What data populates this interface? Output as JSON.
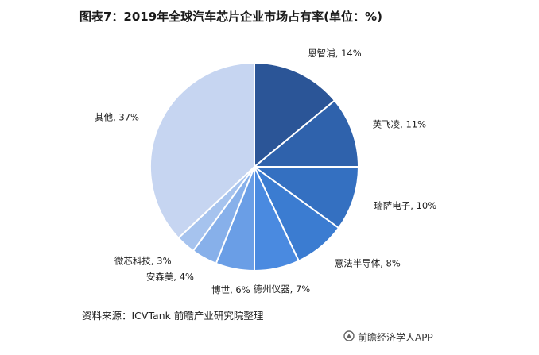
{
  "title": "图表7：2019年全球汽车芯片企业市场占有率(单位：%)",
  "source_text": "资料来源：ICVTank 前瞻产业研究院整理",
  "credit_text": "前瞻经济学人APP",
  "colors": {
    "slices": [
      "#2b5597",
      "#2f62ac",
      "#3470c1",
      "#3b7cd1",
      "#4a8ae0",
      "#6a9ee6",
      "#87b0ea",
      "#a6c3ee",
      "#c6d5f1"
    ],
    "separator": "#ffffff",
    "label": "#222222"
  },
  "chart_data": {
    "type": "pie",
    "title": "图表7：2019年全球汽车芯片企业市场占有率(单位：%)",
    "unit": "%",
    "start": "12 o'clock, clockwise",
    "slices": [
      {
        "label": "恩智浦",
        "value": 14,
        "text": "恩智浦, 14%"
      },
      {
        "label": "英飞凌",
        "value": 11,
        "text": "英飞凌, 11%"
      },
      {
        "label": "瑞萨电子",
        "value": 10,
        "text": "瑞萨电子, 10%"
      },
      {
        "label": "意法半导体",
        "value": 8,
        "text": "意法半导体, 8%"
      },
      {
        "label": "德州仪器",
        "value": 7,
        "text": "德州仪器, 7%"
      },
      {
        "label": "博世",
        "value": 6,
        "text": "博世, 6%"
      },
      {
        "label": "安森美",
        "value": 4,
        "text": "安森美, 4%"
      },
      {
        "label": "微芯科技",
        "value": 3,
        "text": "微芯科技, 3%"
      },
      {
        "label": "其他",
        "value": 37,
        "text": "其他, 37%"
      }
    ]
  }
}
